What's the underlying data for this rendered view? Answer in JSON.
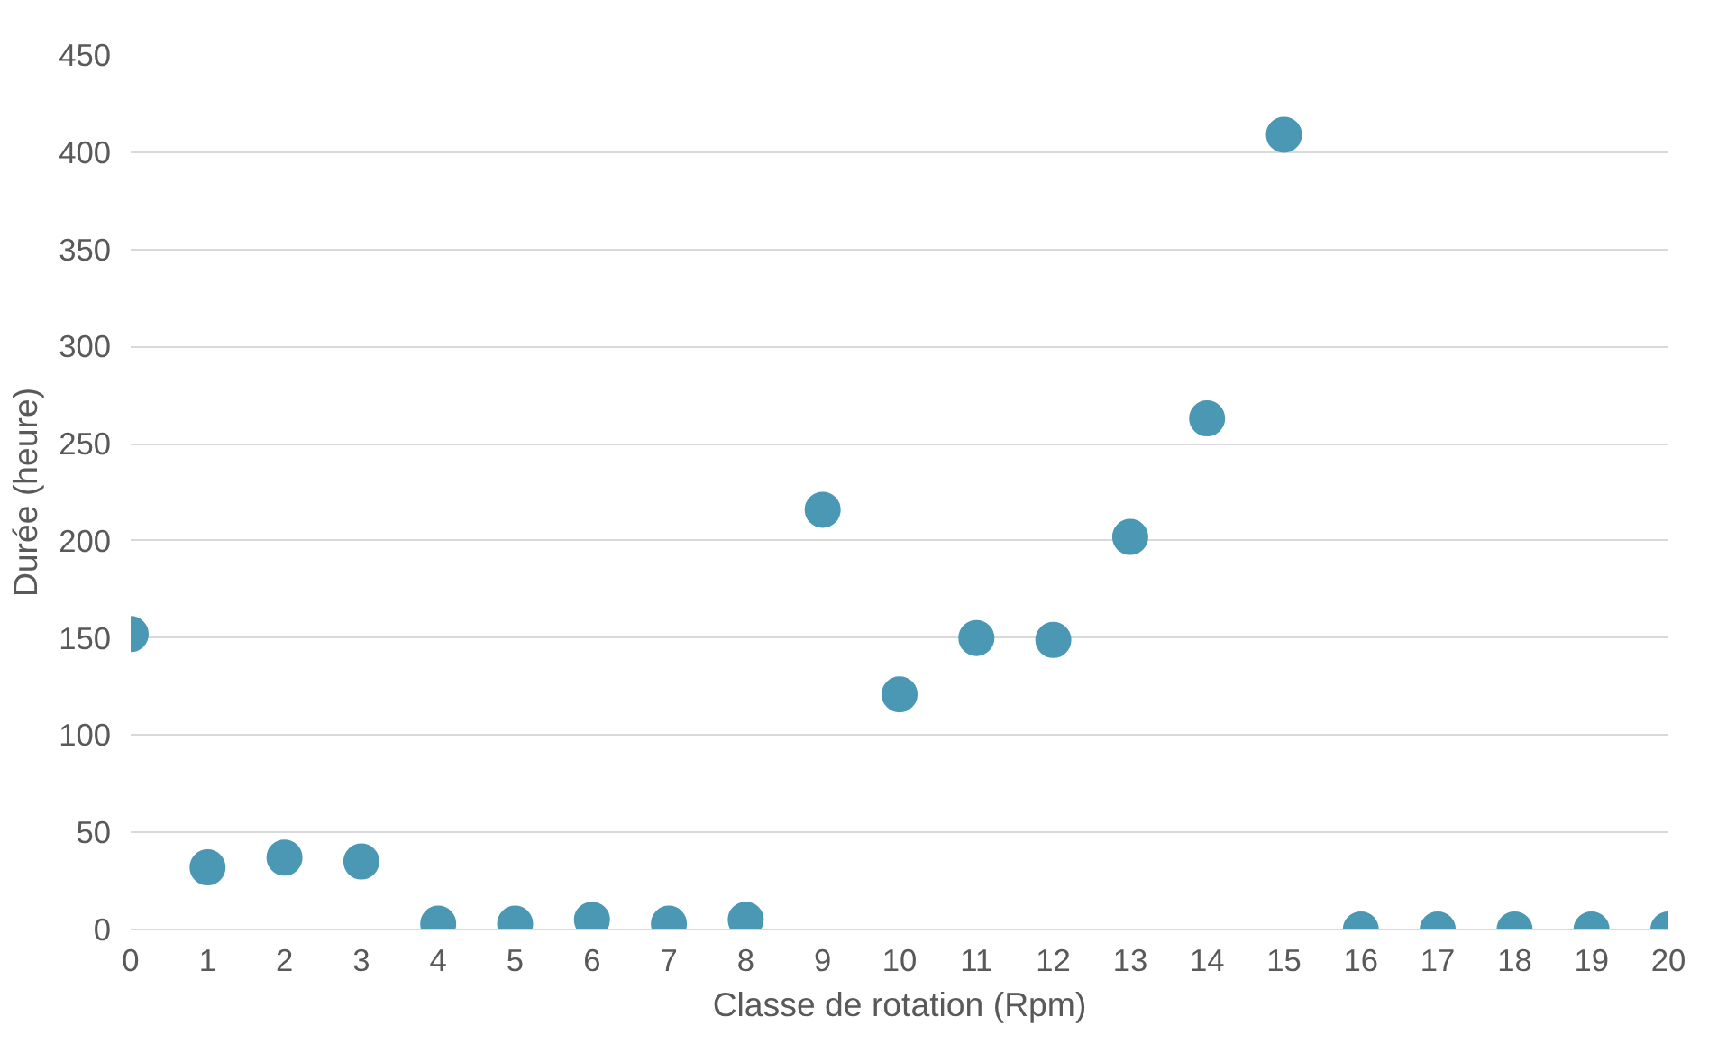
{
  "chart_data": {
    "type": "scatter",
    "xlabel": "Classe de rotation (Rpm)",
    "ylabel": "Durée (heure)",
    "x": [
      0,
      1,
      2,
      3,
      4,
      5,
      6,
      7,
      8,
      9,
      10,
      11,
      12,
      13,
      14,
      15,
      16,
      17,
      18,
      19,
      20
    ],
    "series": [
      {
        "color": "#4a98b3",
        "values": [
          152,
          32,
          37,
          35,
          3,
          3,
          5,
          3,
          5,
          216,
          121,
          150,
          149,
          202,
          263,
          409,
          0,
          0,
          0,
          0,
          0
        ]
      }
    ],
    "xlim": [
      0,
      20
    ],
    "xticks": [
      0,
      1,
      2,
      3,
      4,
      5,
      6,
      7,
      8,
      9,
      10,
      11,
      12,
      13,
      14,
      15,
      16,
      17,
      18,
      19,
      20
    ],
    "ylim": [
      0,
      450
    ],
    "yticks": [
      0,
      50,
      100,
      150,
      200,
      250,
      300,
      350,
      400,
      450
    ],
    "grid": "y",
    "marker": "circle"
  }
}
